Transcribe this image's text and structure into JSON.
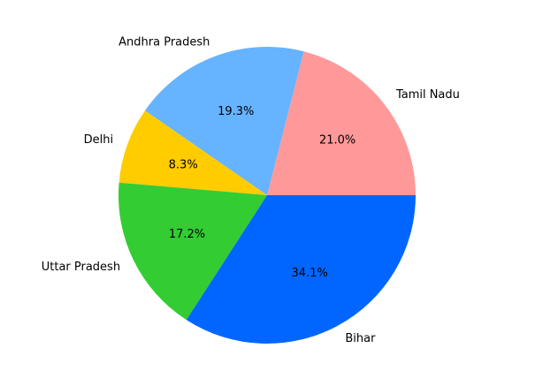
{
  "chart_data": {
    "type": "pie",
    "title": "",
    "slices": [
      {
        "label": "Tamil Nadu",
        "value": 21.0,
        "pct_text": "21.0%",
        "color": "#ff9999"
      },
      {
        "label": "Andhra Pradesh",
        "value": 19.3,
        "pct_text": "19.3%",
        "color": "#66b3ff"
      },
      {
        "label": "Delhi",
        "value": 8.3,
        "pct_text": "8.3%",
        "color": "#ffcc00"
      },
      {
        "label": "Uttar Pradesh",
        "value": 17.2,
        "pct_text": "17.2%",
        "color": "#33cc33"
      },
      {
        "label": "Bihar",
        "value": 34.1,
        "pct_text": "34.1%",
        "color": "#0066ff"
      }
    ],
    "start_angle_deg": 0,
    "direction": "counterclockwise",
    "legend": "none"
  }
}
